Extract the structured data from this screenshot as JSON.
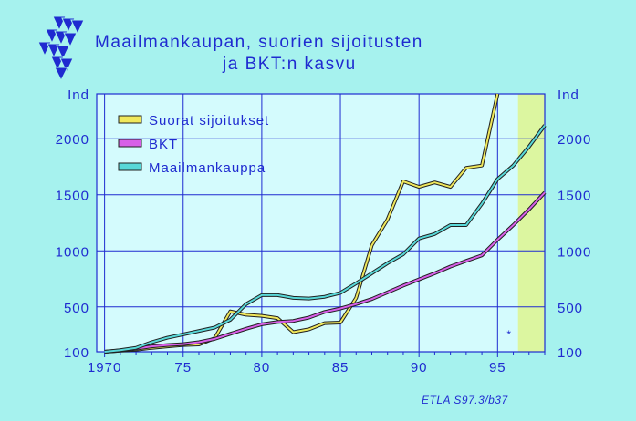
{
  "title_line1": "Maailmankaupan, suorien sijoitusten",
  "title_line2": "ja BKT:n kasvu",
  "footnote": "ETLA S97.3/b37",
  "forecast_marker": "*",
  "colors": {
    "background": "#a6f2ee",
    "plot_area": "#d4fbfd",
    "forecast_band": "#dcf6a0",
    "grid": "#1f2bd0",
    "text": "#1f2bd0",
    "series_fdi": "#f0e85c",
    "series_gdp": "#d860e8",
    "series_trade": "#58d8d8"
  },
  "chart_data": {
    "type": "line",
    "title": "Maailmankaupan, suorien sijoitusten ja BKT:n kasvu",
    "ylabel_left": "Ind",
    "ylabel_right": "Ind",
    "xlim": [
      1969.5,
      1998
    ],
    "ylim": [
      100,
      2400
    ],
    "x_ticks": [
      1970,
      1975,
      1980,
      1985,
      1990,
      1995
    ],
    "x_tick_labels": [
      "1970",
      "75",
      "80",
      "85",
      "90",
      "95"
    ],
    "y_ticks": [
      100,
      500,
      1000,
      1500,
      2000
    ],
    "y_tick_labels": [
      "100",
      "500",
      "1000",
      "1500",
      "2000"
    ],
    "forecast_band_x": [
      1996.3,
      1998
    ],
    "legend_position": "top-left",
    "grid": true,
    "series": [
      {
        "name": "Suorat sijoitukset",
        "color": "#f0e85c",
        "x": [
          1970,
          1971,
          1972,
          1973,
          1974,
          1975,
          1976,
          1977,
          1978,
          1979,
          1980,
          1981,
          1982,
          1983,
          1984,
          1985,
          1986,
          1987,
          1988,
          1989,
          1990,
          1991,
          1992,
          1993,
          1994,
          1995
        ],
        "values": [
          100,
          110,
          118,
          135,
          148,
          160,
          165,
          220,
          460,
          430,
          420,
          400,
          275,
          300,
          355,
          360,
          580,
          1050,
          1280,
          1620,
          1570,
          1610,
          1570,
          1740,
          1760,
          2400
        ]
      },
      {
        "name": "BKT",
        "color": "#d860e8",
        "x": [
          1970,
          1971,
          1972,
          1973,
          1974,
          1975,
          1976,
          1977,
          1978,
          1979,
          1980,
          1981,
          1982,
          1983,
          1984,
          1985,
          1986,
          1987,
          1988,
          1989,
          1990,
          1991,
          1992,
          1993,
          1994,
          1995,
          1996,
          1997,
          1998
        ],
        "values": [
          100,
          112,
          128,
          148,
          160,
          168,
          185,
          215,
          260,
          305,
          345,
          365,
          375,
          405,
          455,
          485,
          525,
          570,
          630,
          690,
          745,
          800,
          860,
          910,
          960,
          1100,
          1230,
          1370,
          1520
        ]
      },
      {
        "name": "Maailmankauppa",
        "color": "#58d8d8",
        "x": [
          1970,
          1971,
          1972,
          1973,
          1974,
          1975,
          1976,
          1977,
          1978,
          1979,
          1980,
          1981,
          1982,
          1983,
          1984,
          1985,
          1986,
          1987,
          1988,
          1989,
          1990,
          1991,
          1992,
          1993,
          1994,
          1995,
          1996,
          1997,
          1998
        ],
        "values": [
          100,
          115,
          135,
          185,
          225,
          255,
          285,
          315,
          385,
          525,
          605,
          605,
          580,
          575,
          590,
          625,
          710,
          800,
          890,
          970,
          1110,
          1150,
          1230,
          1230,
          1420,
          1640,
          1760,
          1930,
          2120
        ]
      }
    ]
  }
}
